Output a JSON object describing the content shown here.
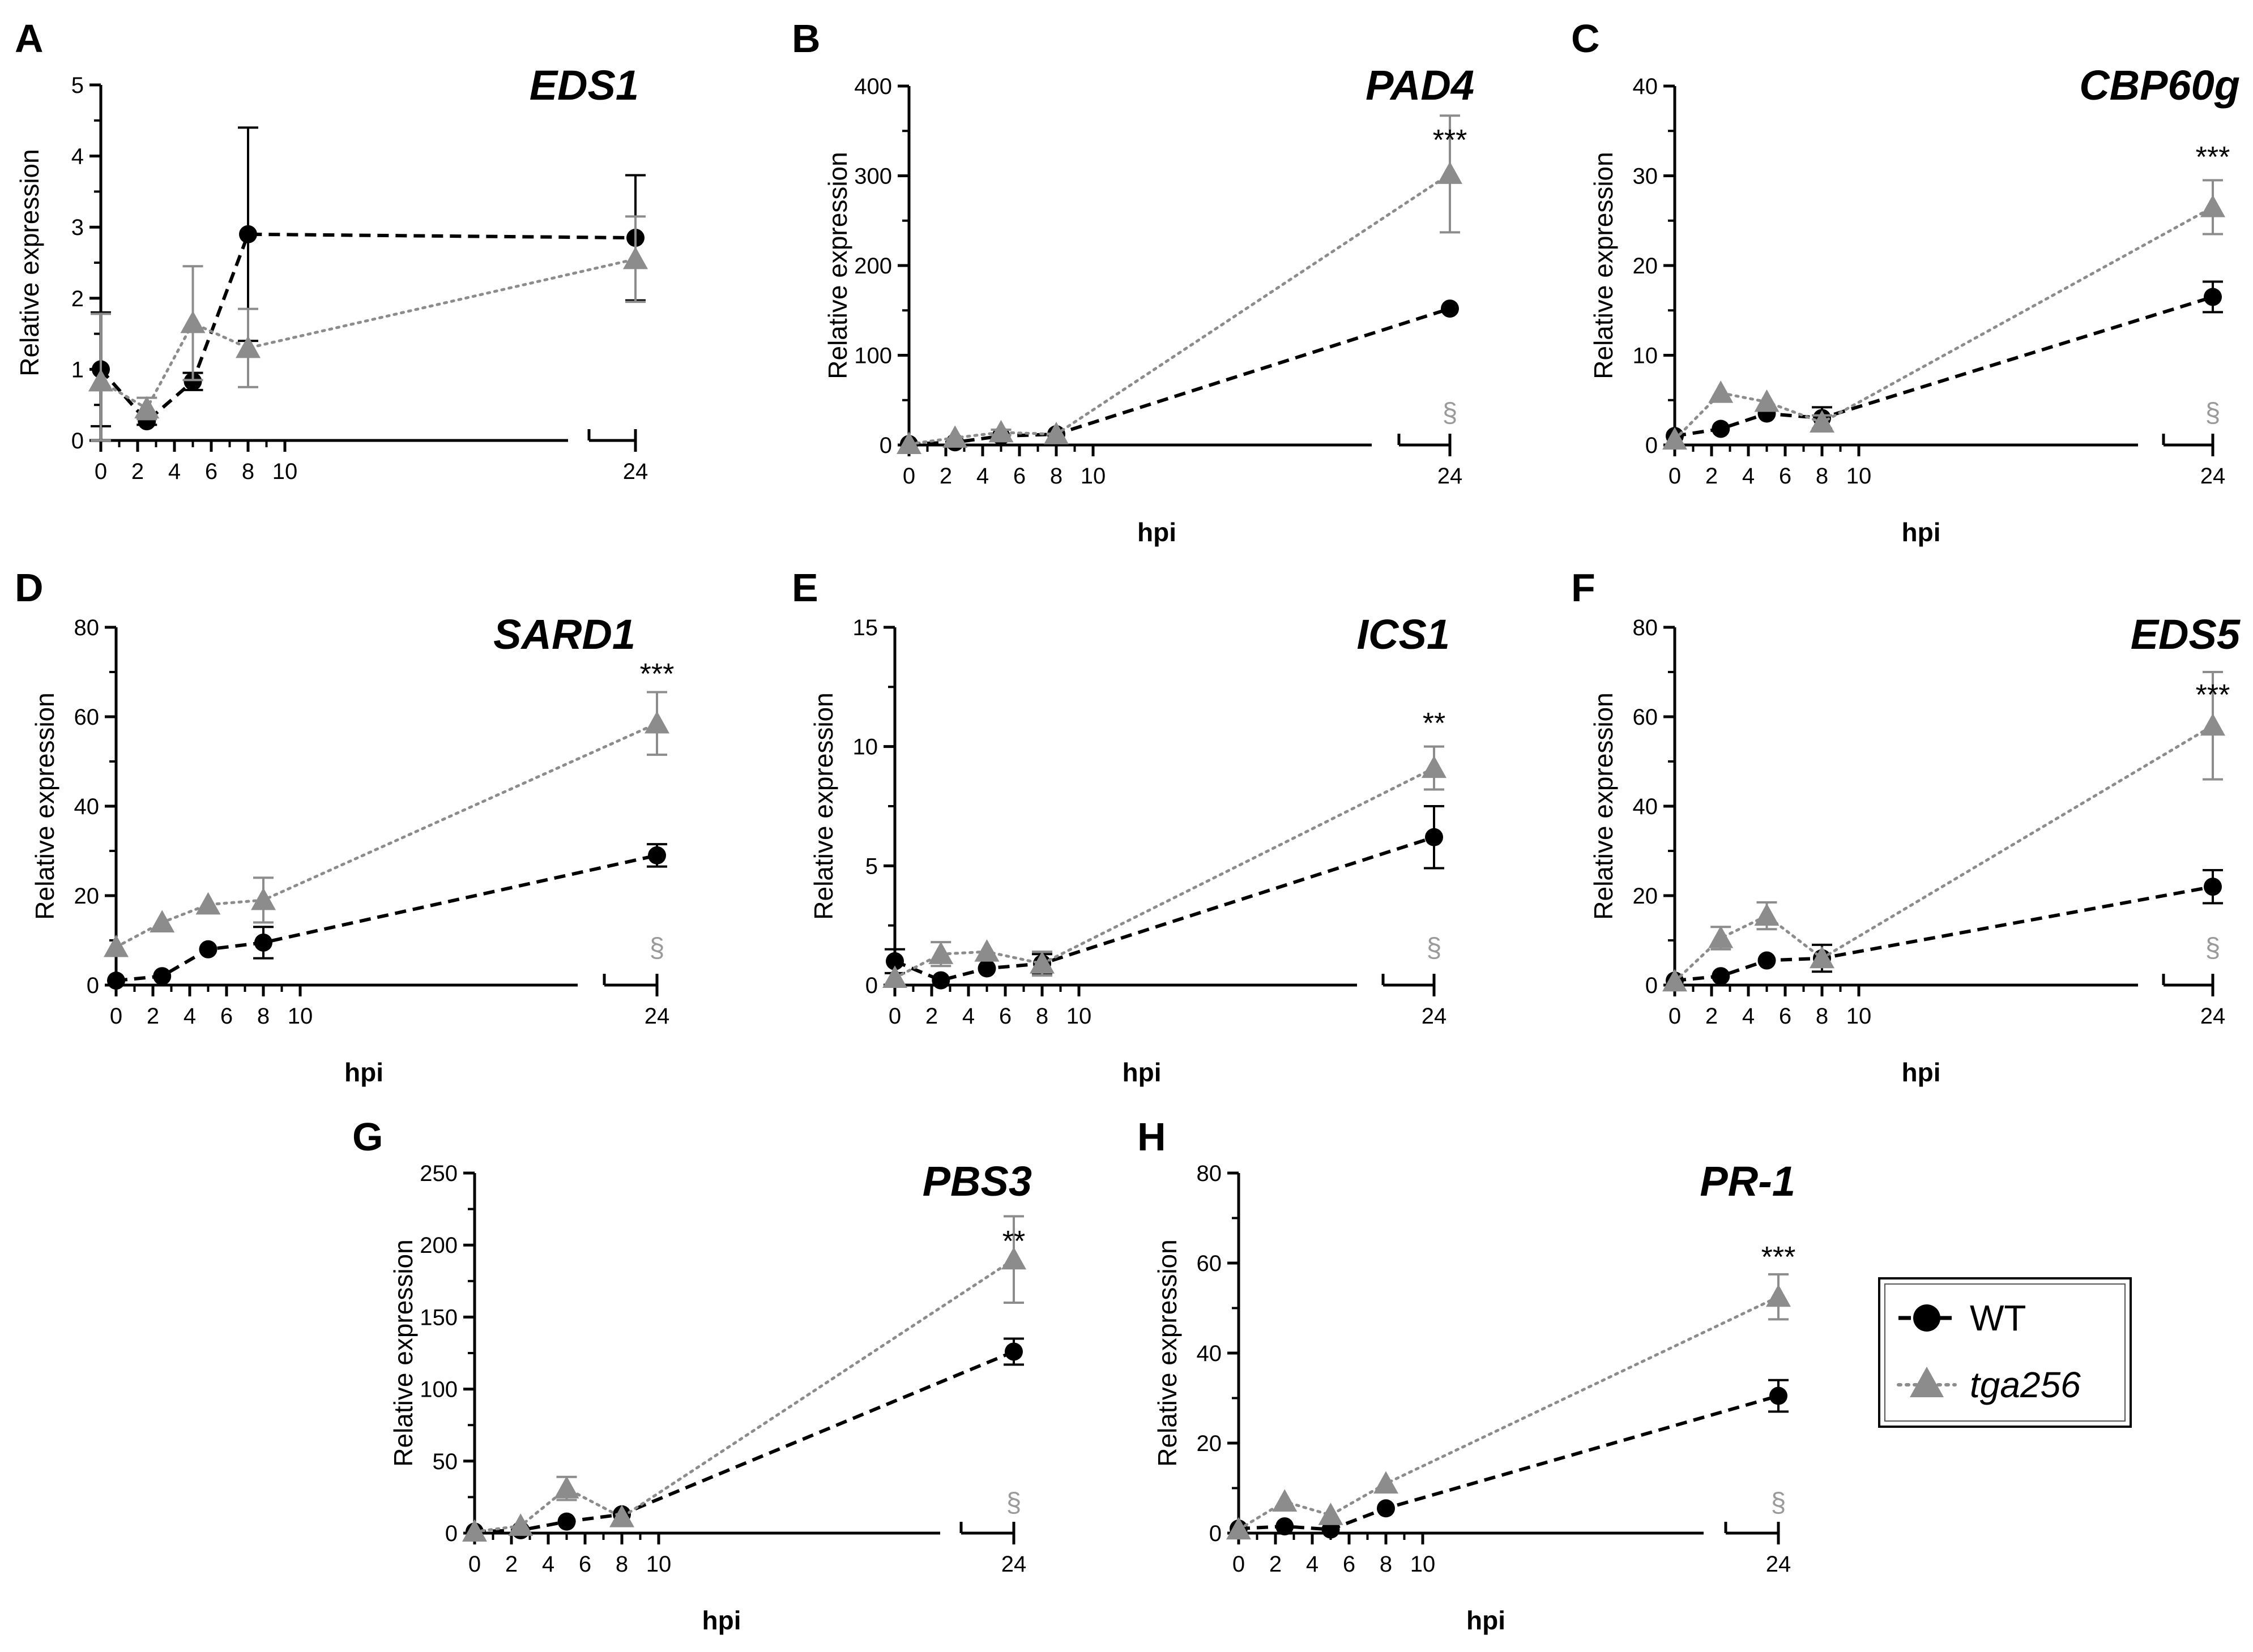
{
  "colors": {
    "wt": "#000000",
    "tga256": "#8c8c8c",
    "sect": "#9a9a9a"
  },
  "legend": {
    "entries": [
      {
        "label": "WT",
        "marker": "circle",
        "line": "dashed"
      },
      {
        "label": "tga256",
        "marker": "triangle",
        "line": "dotted",
        "italic": true
      }
    ]
  },
  "chart_data": [
    {
      "panel": "A",
      "title": "EDS1",
      "type": "line",
      "ylabel": "Relative expression",
      "xlabel": "",
      "ylim": [
        0,
        5
      ],
      "yticks": [
        0,
        1,
        2,
        3,
        4,
        5
      ],
      "xticks": [
        0,
        2,
        4,
        6,
        8,
        10,
        24
      ],
      "xbreak": [
        10,
        24
      ],
      "series": [
        {
          "name": "WT",
          "x": [
            0,
            2.5,
            5,
            8,
            24
          ],
          "y": [
            1.0,
            0.27,
            0.83,
            2.9,
            2.85
          ],
          "err": [
            0.8,
            0.05,
            0.12,
            1.5,
            0.88
          ]
        },
        {
          "name": "tga256",
          "x": [
            0,
            2.5,
            5,
            8,
            24
          ],
          "y": [
            0.83,
            0.45,
            1.65,
            1.3,
            2.55
          ],
          "err": [
            0.95,
            0.15,
            0.8,
            0.55,
            0.6
          ]
        }
      ],
      "significance": "",
      "sect": ""
    },
    {
      "panel": "B",
      "title": "PAD4",
      "type": "line",
      "ylabel": "Relative expression",
      "xlabel": "hpi",
      "ylim": [
        0,
        400
      ],
      "yticks": [
        0,
        100,
        200,
        300,
        400
      ],
      "xticks": [
        0,
        2,
        4,
        6,
        8,
        10,
        24
      ],
      "xbreak": [
        10,
        24
      ],
      "series": [
        {
          "name": "WT",
          "x": [
            0,
            2.5,
            5,
            8,
            24
          ],
          "y": [
            1,
            3,
            10,
            12,
            152
          ],
          "err": [
            0,
            0,
            0,
            0,
            0
          ]
        },
        {
          "name": "tga256",
          "x": [
            0,
            2.5,
            5,
            8,
            24
          ],
          "y": [
            1,
            8,
            14,
            12,
            302
          ],
          "err": [
            0,
            0,
            3,
            0,
            65
          ]
        }
      ],
      "significance": "***",
      "sect": "§"
    },
    {
      "panel": "C",
      "title": "CBP60g",
      "type": "line",
      "ylabel": "Relative expression",
      "xlabel": "hpi",
      "ylim": [
        0,
        40
      ],
      "yticks": [
        0,
        10,
        20,
        30,
        40
      ],
      "xticks": [
        0,
        2,
        4,
        6,
        8,
        10,
        24
      ],
      "xbreak": [
        10,
        24
      ],
      "series": [
        {
          "name": "WT",
          "x": [
            0,
            2.5,
            5,
            8,
            24
          ],
          "y": [
            1,
            1.8,
            3.5,
            3.0,
            16.5
          ],
          "err": [
            0,
            0,
            0,
            1.2,
            1.7
          ]
        },
        {
          "name": "tga256",
          "x": [
            0,
            2.5,
            5,
            8,
            24
          ],
          "y": [
            0.6,
            5.8,
            4.8,
            2.5,
            26.5
          ],
          "err": [
            0,
            0,
            0,
            0.8,
            3.0
          ]
        }
      ],
      "significance": "***",
      "sect": "§"
    },
    {
      "panel": "D",
      "title": "SARD1",
      "type": "line",
      "ylabel": "Relative expression",
      "xlabel": "hpi",
      "ylim": [
        0,
        80
      ],
      "yticks": [
        0,
        20,
        40,
        60,
        80
      ],
      "xticks": [
        0,
        2,
        4,
        6,
        8,
        10,
        24
      ],
      "xbreak": [
        10,
        24
      ],
      "series": [
        {
          "name": "WT",
          "x": [
            0,
            2.5,
            5,
            8,
            24
          ],
          "y": [
            1,
            2,
            8,
            9.5,
            29
          ],
          "err": [
            0,
            0,
            0,
            3.5,
            2.5
          ]
        },
        {
          "name": "tga256",
          "x": [
            0,
            2.5,
            5,
            8,
            24
          ],
          "y": [
            8.5,
            14,
            18,
            19,
            58.5
          ],
          "err": [
            0,
            0,
            0,
            5,
            7
          ]
        }
      ],
      "significance": "***",
      "sect": "§"
    },
    {
      "panel": "E",
      "title": "ICS1",
      "type": "line",
      "ylabel": "Relative expression",
      "xlabel": "hpi",
      "ylim": [
        0,
        15
      ],
      "yticks": [
        0,
        5,
        10,
        15
      ],
      "xticks": [
        0,
        2,
        4,
        6,
        8,
        10,
        24
      ],
      "xbreak": [
        10,
        24
      ],
      "series": [
        {
          "name": "WT",
          "x": [
            0,
            2.5,
            5,
            8,
            24
          ],
          "y": [
            1.0,
            0.2,
            0.7,
            0.9,
            6.2
          ],
          "err": [
            0.5,
            0,
            0,
            0.4,
            1.3
          ]
        },
        {
          "name": "tga256",
          "x": [
            0,
            2.5,
            5,
            8,
            24
          ],
          "y": [
            0.3,
            1.3,
            1.4,
            0.9,
            9.1
          ],
          "err": [
            0,
            0.5,
            0,
            0.5,
            0.9
          ]
        }
      ],
      "significance": "**",
      "sect": "§"
    },
    {
      "panel": "F",
      "title": "EDS5",
      "type": "line",
      "ylabel": "Relative expression",
      "xlabel": "hpi",
      "ylim": [
        0,
        80
      ],
      "yticks": [
        0,
        20,
        40,
        60,
        80
      ],
      "xticks": [
        0,
        2,
        4,
        6,
        8,
        10,
        24
      ],
      "xbreak": [
        10,
        24
      ],
      "series": [
        {
          "name": "WT",
          "x": [
            0,
            2.5,
            5,
            8,
            24
          ],
          "y": [
            1,
            2,
            5.5,
            6,
            22
          ],
          "err": [
            0,
            0,
            0,
            3,
            3.7
          ]
        },
        {
          "name": "tga256",
          "x": [
            0,
            2.5,
            5,
            8,
            24
          ],
          "y": [
            0.8,
            10.5,
            15.5,
            6,
            58
          ],
          "err": [
            0,
            2.5,
            3,
            0,
            12
          ]
        }
      ],
      "significance": "***",
      "sect": "§"
    },
    {
      "panel": "G",
      "title": "PBS3",
      "type": "line",
      "ylabel": "Relative expression",
      "xlabel": "hpi",
      "ylim": [
        0,
        250
      ],
      "yticks": [
        0,
        50,
        100,
        150,
        200,
        250
      ],
      "xticks": [
        0,
        2,
        4,
        6,
        8,
        10,
        24
      ],
      "xbreak": [
        10,
        24
      ],
      "series": [
        {
          "name": "WT",
          "x": [
            0,
            2.5,
            5,
            8,
            24
          ],
          "y": [
            1,
            2,
            8,
            13,
            126
          ],
          "err": [
            0,
            0,
            0,
            0,
            9
          ]
        },
        {
          "name": "tga256",
          "x": [
            0,
            2.5,
            5,
            8,
            24
          ],
          "y": [
            1,
            5,
            31,
            11,
            190
          ],
          "err": [
            0,
            0,
            8,
            0,
            30
          ]
        }
      ],
      "significance": "**",
      "sect": "§"
    },
    {
      "panel": "H",
      "title": "PR-1",
      "type": "line",
      "ylabel": "Relative expression",
      "xlabel": "hpi",
      "ylim": [
        0,
        80
      ],
      "yticks": [
        0,
        20,
        40,
        60,
        80
      ],
      "xticks": [
        0,
        2,
        4,
        6,
        8,
        10,
        24
      ],
      "xbreak": [
        10,
        24
      ],
      "series": [
        {
          "name": "WT",
          "x": [
            0,
            2.5,
            5,
            8,
            24
          ],
          "y": [
            1,
            1.5,
            0.8,
            5.5,
            30.5
          ],
          "err": [
            0,
            0,
            0,
            0,
            3.5
          ]
        },
        {
          "name": "tga256",
          "x": [
            0,
            2.5,
            5,
            8,
            24
          ],
          "y": [
            0.8,
            7,
            4,
            11,
            52.5
          ],
          "err": [
            0,
            0,
            0,
            0,
            5
          ]
        }
      ],
      "significance": "***",
      "sect": "§"
    }
  ]
}
